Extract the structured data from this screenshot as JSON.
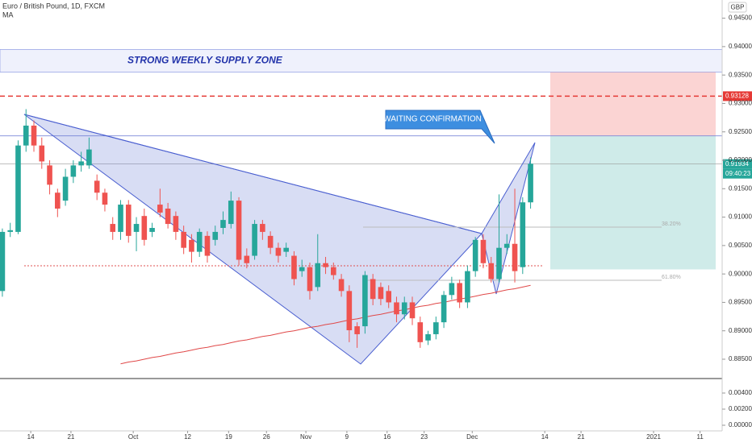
{
  "header": {
    "title": "Euro / British Pound, 1D, FXCM",
    "indicator": "MA",
    "currency": "GBP"
  },
  "chart_data": {
    "type": "candlestick",
    "xticks": [
      {
        "value": 3.6,
        "label": "14"
      },
      {
        "value": 8.7,
        "label": "21"
      },
      {
        "value": 16.6,
        "label": "Oct"
      },
      {
        "value": 23.5,
        "label": "12"
      },
      {
        "value": 28.7,
        "label": "19"
      },
      {
        "value": 33.5,
        "label": "26"
      },
      {
        "value": 38.5,
        "label": "Nov"
      },
      {
        "value": 43.7,
        "label": "9"
      },
      {
        "value": 48.8,
        "label": "16"
      },
      {
        "value": 53.5,
        "label": "23"
      },
      {
        "value": 59.6,
        "label": "Dec"
      },
      {
        "value": 68.8,
        "label": "14"
      },
      {
        "value": 73.4,
        "label": "21"
      },
      {
        "value": 82.6,
        "label": "2021"
      },
      {
        "value": 88.5,
        "label": "11"
      }
    ],
    "xlim": [
      -0.3,
      91.3
    ],
    "ylim": [
      0.8816,
      0.9482
    ],
    "yticks": [
      {
        "value": 0.945,
        "label": "0.94500"
      },
      {
        "value": 0.94,
        "label": "0.94000"
      },
      {
        "value": 0.935,
        "label": "0.93500"
      },
      {
        "value": 0.93,
        "label": "0.93000"
      },
      {
        "value": 0.925,
        "label": "0.92500"
      },
      {
        "value": 0.92,
        "label": "0.92000"
      },
      {
        "value": 0.915,
        "label": "0.91500"
      },
      {
        "value": 0.91,
        "label": "0.91000"
      },
      {
        "value": 0.905,
        "label": "0.90500"
      },
      {
        "value": 0.9,
        "label": "0.90000"
      },
      {
        "value": 0.895,
        "label": "0.89500"
      },
      {
        "value": 0.89,
        "label": "0.89000"
      },
      {
        "value": 0.885,
        "label": "0.88500"
      }
    ],
    "open": [
      0.897,
      0.9074,
      0.9074,
      0.9226,
      0.9261,
      0.9226,
      0.9191,
      0.9143,
      0.9129,
      0.9171,
      0.9191,
      0.9191,
      0.9164,
      0.9143,
      0.9088,
      0.9074,
      0.9122,
      0.9074,
      0.9102,
      0.9074,
      0.9122,
      0.9115,
      0.9102,
      0.9074,
      0.906,
      0.9039,
      0.9067,
      0.906,
      0.9081,
      0.9088,
      0.9129,
      0.9032,
      0.9032,
      0.9088,
      0.9067,
      0.9046,
      0.9039,
      0.9032,
      0.9005,
      0.9012,
      0.8977,
      0.9019,
      0.9012,
      0.8991,
      0.897,
      0.8908,
      0.8908,
      0.8991,
      0.8977,
      0.897,
      0.895,
      0.8929,
      0.895,
      0.8915,
      0.8883,
      0.8894,
      0.8915,
      0.8963,
      0.8984,
      0.895,
      0.9005,
      0.906,
      0.9019,
      0.8991,
      0.9046,
      0.9053,
      0.9012,
      0.9126
    ],
    "close": [
      0.9074,
      0.9077,
      0.9226,
      0.9261,
      0.9226,
      0.9198,
      0.9157,
      0.9115,
      0.9171,
      0.9191,
      0.9198,
      0.9219,
      0.9143,
      0.9122,
      0.9074,
      0.9122,
      0.9067,
      0.9088,
      0.906,
      0.9081,
      0.9108,
      0.9088,
      0.9074,
      0.9046,
      0.9039,
      0.9074,
      0.9032,
      0.9074,
      0.9095,
      0.9129,
      0.9025,
      0.9019,
      0.9088,
      0.9074,
      0.9046,
      0.9032,
      0.9046,
      0.8991,
      0.9012,
      0.897,
      0.9019,
      0.9012,
      0.8998,
      0.897,
      0.8901,
      0.8894,
      0.8998,
      0.8956,
      0.8956,
      0.895,
      0.8929,
      0.895,
      0.8922,
      0.888,
      0.8894,
      0.8915,
      0.8963,
      0.8984,
      0.895,
      0.9005,
      0.906,
      0.9019,
      0.8991,
      0.9046,
      0.9053,
      0.9005,
      0.9126,
      0.9194
    ],
    "high": [
      0.908,
      0.909,
      0.9235,
      0.929,
      0.927,
      0.924,
      0.92,
      0.915,
      0.9185,
      0.92,
      0.9215,
      0.924,
      0.9175,
      0.915,
      0.91,
      0.913,
      0.913,
      0.91,
      0.9115,
      0.909,
      0.915,
      0.9125,
      0.911,
      0.9085,
      0.907,
      0.908,
      0.9075,
      0.9085,
      0.911,
      0.9145,
      0.9135,
      0.9045,
      0.9095,
      0.9095,
      0.9075,
      0.9055,
      0.9055,
      0.904,
      0.9025,
      0.902,
      0.907,
      0.903,
      0.902,
      0.9,
      0.898,
      0.8915,
      0.9005,
      0.9,
      0.8985,
      0.898,
      0.896,
      0.896,
      0.896,
      0.8925,
      0.89,
      0.8925,
      0.897,
      0.8995,
      0.899,
      0.9015,
      0.9065,
      0.907,
      0.903,
      0.914,
      0.907,
      0.915,
      0.9135,
      0.9205
    ],
    "low": [
      0.896,
      0.9065,
      0.907,
      0.9215,
      0.9215,
      0.9185,
      0.914,
      0.91,
      0.912,
      0.916,
      0.918,
      0.9185,
      0.913,
      0.911,
      0.906,
      0.906,
      0.9055,
      0.904,
      0.905,
      0.9065,
      0.91,
      0.908,
      0.906,
      0.9035,
      0.902,
      0.903,
      0.902,
      0.905,
      0.907,
      0.908,
      0.9015,
      0.901,
      0.9025,
      0.906,
      0.9035,
      0.902,
      0.903,
      0.898,
      0.8995,
      0.8955,
      0.897,
      0.9,
      0.899,
      0.896,
      0.888,
      0.887,
      0.8895,
      0.8945,
      0.8945,
      0.894,
      0.8915,
      0.892,
      0.891,
      0.887,
      0.8875,
      0.8885,
      0.8905,
      0.8955,
      0.894,
      0.894,
      0.8995,
      0.901,
      0.8985,
      0.8985,
      0.9035,
      0.8985,
      0.9,
      0.9115
    ],
    "ma": [
      null,
      null,
      null,
      null,
      null,
      null,
      null,
      null,
      null,
      null,
      null,
      null,
      null,
      null,
      null,
      0.8842,
      0.8845,
      0.8847,
      0.885,
      0.8853,
      0.8855,
      0.8858,
      0.8861,
      0.8863,
      0.8866,
      0.8869,
      0.8871,
      0.8874,
      0.8876,
      0.8879,
      0.8882,
      0.8884,
      0.8887,
      0.889,
      0.8892,
      0.8895,
      0.8898,
      0.89,
      0.8903,
      0.8906,
      0.8908,
      0.8911,
      0.8913,
      0.8916,
      0.8919,
      0.8921,
      0.8924,
      0.8927,
      0.8929,
      0.8932,
      0.8935,
      0.8937,
      0.894,
      0.8943,
      0.8945,
      0.8948,
      0.895,
      0.8953,
      0.8956,
      0.8958,
      0.8961,
      0.8964,
      0.8966,
      0.8969,
      0.8972,
      0.8974,
      0.8977,
      0.898
    ],
    "up_color": "#26a69a",
    "down_color": "#ef5350",
    "ma_color": "#e04848",
    "supply_zone": {
      "label": "STRONG WEEKLY SUPPLY ZONE",
      "range": [
        0.9355,
        0.9395
      ]
    },
    "position": {
      "stop": 0.9355,
      "entry": 0.9243,
      "target": 0.9008
    },
    "price_tags": [
      {
        "value": 0.93128,
        "color": "#e53935"
      },
      {
        "value": 0.91934,
        "color": "#26a69a"
      }
    ],
    "countdown": "09:40:23",
    "callout": "WAITING CONFIRMATION",
    "fib_labels": [
      "38.20%",
      "61.80%"
    ],
    "indicator_pane": {
      "ylim": [
        -0.0007,
        0.0058
      ],
      "yticks": [
        {
          "value": 0.004,
          "label": "0.00400"
        },
        {
          "value": 0.002,
          "label": "0.00200"
        },
        {
          "value": 0,
          "label": "0.00000"
        }
      ]
    }
  }
}
